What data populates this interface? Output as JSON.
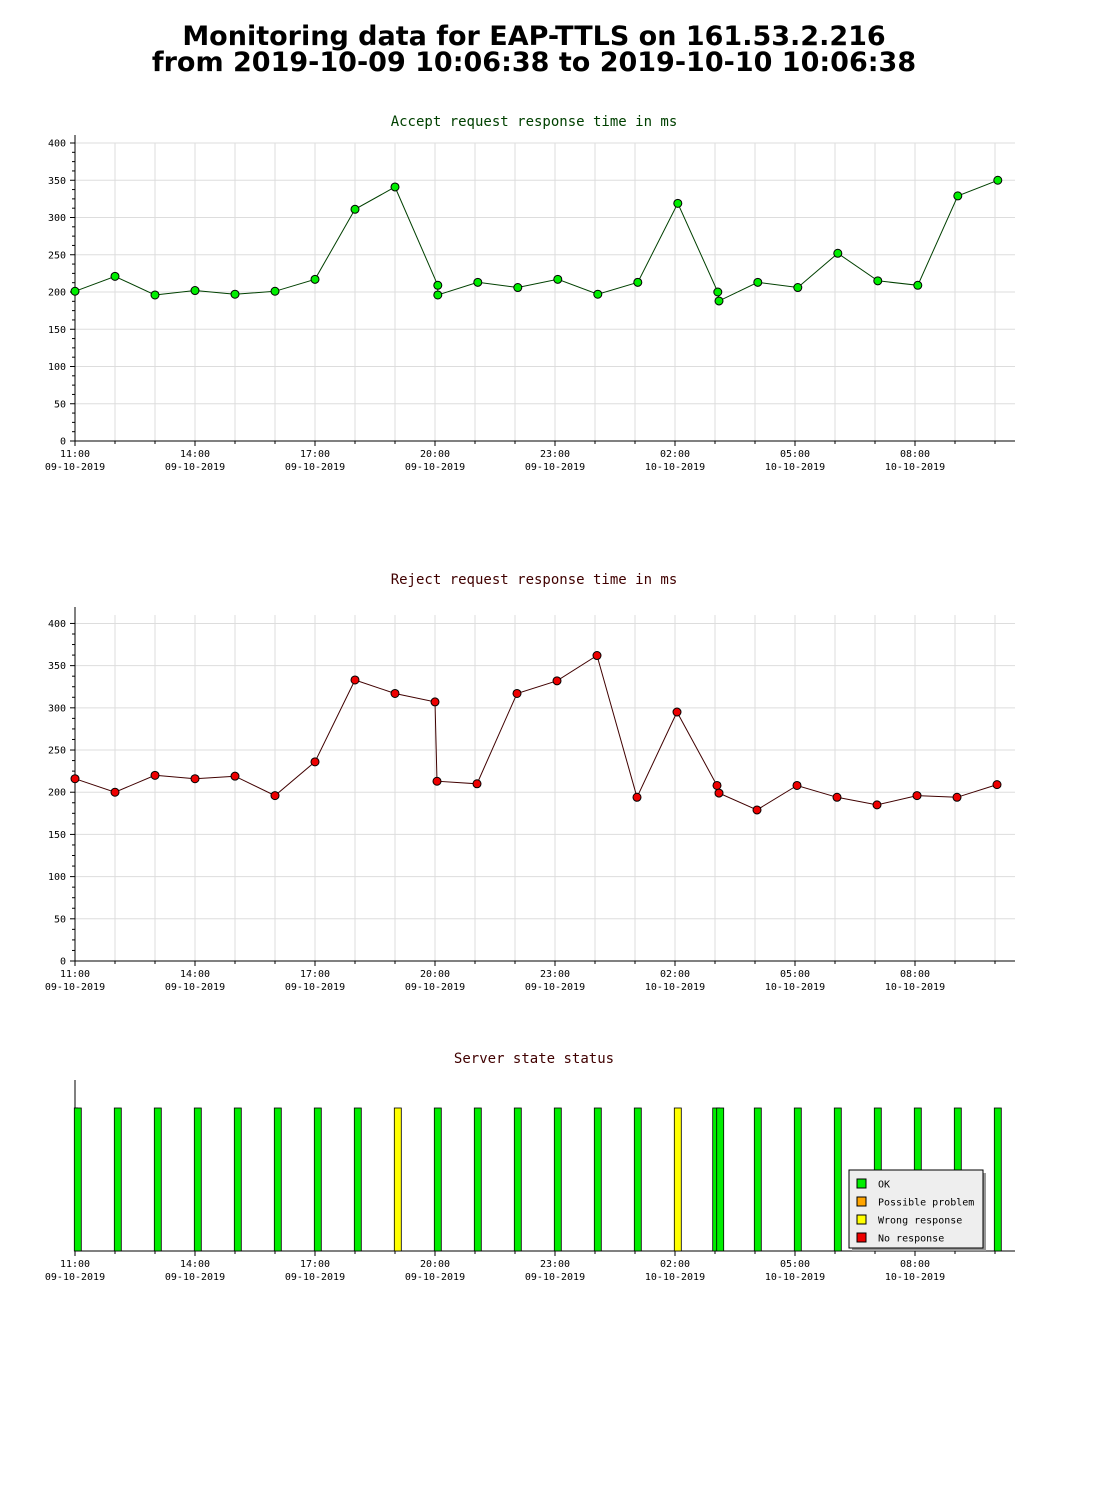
{
  "header": {
    "line1": "Monitoring data for EAP-TTLS on 161.53.2.216",
    "line2": "from 2019-10-09 10:06:38 to 2019-10-10 10:06:38"
  },
  "x_ticks": [
    {
      "h": 11,
      "time": "11:00",
      "date": "09-10-2019"
    },
    {
      "h": 14,
      "time": "14:00",
      "date": "09-10-2019"
    },
    {
      "h": 17,
      "time": "17:00",
      "date": "09-10-2019"
    },
    {
      "h": 20,
      "time": "20:00",
      "date": "09-10-2019"
    },
    {
      "h": 23,
      "time": "23:00",
      "date": "09-10-2019"
    },
    {
      "h": 26,
      "time": "02:00",
      "date": "10-10-2019"
    },
    {
      "h": 29,
      "time": "05:00",
      "date": "10-10-2019"
    },
    {
      "h": 32,
      "time": "08:00",
      "date": "10-10-2019"
    }
  ],
  "chart_data": [
    {
      "type": "line",
      "title": "Accept request response time in ms",
      "title_color": "#004000",
      "marker_color": "#00ee00",
      "line_color": "#004000",
      "ylim": [
        0,
        400
      ],
      "yticks": [
        0,
        50,
        100,
        150,
        200,
        250,
        300,
        350,
        400
      ],
      "xlim_hours": [
        11,
        34.5
      ],
      "grid": true,
      "x": [
        11.0,
        12.0,
        13.0,
        14.0,
        15.0,
        16.0,
        17.0,
        18.0,
        19.0,
        20.07,
        20.07,
        21.07,
        22.07,
        23.07,
        24.07,
        25.07,
        26.07,
        27.07,
        27.1,
        28.07,
        29.07,
        30.07,
        31.07,
        32.07,
        33.07,
        34.07
      ],
      "values": [
        201,
        221,
        196,
        202,
        197,
        201,
        217,
        311,
        341,
        209,
        196,
        213,
        206,
        217,
        197,
        213,
        319,
        200,
        188,
        213,
        206,
        252,
        215,
        209,
        329,
        350
      ]
    },
    {
      "type": "line",
      "title": "Reject request response time in ms",
      "title_color": "#400000",
      "marker_color": "#ee0000",
      "line_color": "#400000",
      "ylim": [
        0,
        410
      ],
      "yticks": [
        0,
        50,
        100,
        150,
        200,
        250,
        300,
        350,
        400
      ],
      "xlim_hours": [
        11,
        34.5
      ],
      "grid": true,
      "x": [
        11.0,
        12.0,
        13.0,
        14.0,
        15.0,
        16.0,
        17.0,
        18.0,
        19.0,
        20.0,
        20.05,
        21.05,
        22.05,
        23.05,
        24.05,
        25.05,
        26.05,
        27.05,
        27.1,
        28.05,
        29.05,
        30.05,
        31.05,
        32.05,
        33.05,
        34.05
      ],
      "values": [
        216,
        200,
        220,
        216,
        219,
        196,
        236,
        333,
        317,
        307,
        213,
        210,
        317,
        332,
        362,
        194,
        295,
        208,
        199,
        179,
        208,
        194,
        185,
        196,
        194,
        209
      ]
    },
    {
      "type": "bar",
      "title": "Server state status",
      "title_color": "#400000",
      "xlim_hours": [
        11,
        34.5
      ],
      "x": [
        11.07,
        12.07,
        13.07,
        14.07,
        15.07,
        16.07,
        17.07,
        18.07,
        19.07,
        20.07,
        21.07,
        22.07,
        23.07,
        24.07,
        25.07,
        26.07,
        27.03,
        27.13,
        28.07,
        29.07,
        30.07,
        31.07,
        32.07,
        33.07,
        34.07
      ],
      "status": [
        "OK",
        "OK",
        "OK",
        "OK",
        "OK",
        "OK",
        "OK",
        "OK",
        "Wrong response",
        "OK",
        "OK",
        "OK",
        "OK",
        "OK",
        "OK",
        "Wrong response",
        "OK",
        "OK",
        "OK",
        "OK",
        "OK",
        "OK",
        "OK",
        "OK",
        "OK"
      ],
      "legend_position": "bottom-right",
      "legend": [
        {
          "label": "OK",
          "color": "#00ee00"
        },
        {
          "label": "Possible problem",
          "color": "#ffa500"
        },
        {
          "label": "Wrong response",
          "color": "#ffff00"
        },
        {
          "label": "No response",
          "color": "#ee0000"
        }
      ]
    }
  ]
}
